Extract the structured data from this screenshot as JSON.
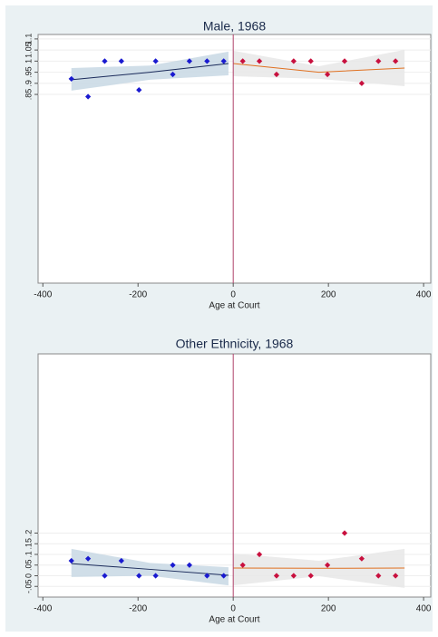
{
  "chart_data": [
    {
      "type": "rdplot",
      "title": "Male, 1968",
      "x_label": "Age at Court",
      "xlim": [
        -410,
        415
      ],
      "ylim": [
        0,
        1.12
      ],
      "xticks": [
        -400,
        -200,
        0,
        200,
        400
      ],
      "yticks": [
        {
          "value": 0.85,
          "label": ".85"
        },
        {
          "value": 0.9,
          "label": ".9"
        },
        {
          "value": 0.95,
          "label": ".95"
        },
        1,
        {
          "value": 1.05,
          "label": "1.05"
        },
        {
          "value": 1.1,
          "label": "1.1"
        }
      ],
      "grid": true,
      "xline": 0,
      "xline_color": "#b0406a",
      "series": [
        {
          "color": "#1a1ad0",
          "x": [
            -340,
            -305,
            -270,
            -235,
            -198,
            -163,
            -127,
            -92,
            -55,
            -20
          ],
          "values": [
            0.92,
            0.84,
            1,
            1,
            0.87,
            1,
            0.94,
            1,
            1,
            1
          ]
        },
        {
          "color": "#c8103e",
          "x": [
            20,
            55,
            91,
            127,
            163,
            198,
            234,
            270,
            305,
            341
          ],
          "values": [
            1,
            1,
            0.94,
            1,
            1,
            0.94,
            1,
            0.9,
            1,
            1
          ]
        }
      ],
      "fits": [
        {
          "color": "#1a2a5a",
          "band_color": "#c8d8e4",
          "x": [
            -340,
            -175,
            -10
          ],
          "values": [
            0.916,
            0.95,
            0.989
          ],
          "lower": [
            0.867,
            0.916,
            0.936
          ],
          "upper": [
            0.969,
            0.98,
            1.043
          ]
        },
        {
          "color": "#e07020",
          "band_color": "#e8e8e8",
          "x": [
            0,
            180,
            360
          ],
          "values": [
            0.989,
            0.95,
            0.969
          ],
          "lower": [
            0.932,
            0.92,
            0.887
          ],
          "upper": [
            1.047,
            0.977,
            1.051
          ]
        }
      ]
    },
    {
      "type": "rdplot",
      "title": "Other Ethnicity, 1968",
      "x_label": "Age at Court",
      "xlim": [
        -410,
        415
      ],
      "ylim": [
        -0.1,
        1.04
      ],
      "xticks": [
        -400,
        -200,
        0,
        200,
        400
      ],
      "yticks": [
        {
          "value": -0.05,
          "label": "-.05"
        },
        0,
        {
          "value": 0.05,
          "label": ".05"
        },
        {
          "value": 0.1,
          "label": ".1"
        },
        {
          "value": 0.15,
          "label": ".15"
        },
        {
          "value": 0.2,
          "label": ".2"
        }
      ],
      "grid": true,
      "xline": 0,
      "xline_color": "#b0406a",
      "series": [
        {
          "color": "#1a1ad0",
          "x": [
            -340,
            -305,
            -270,
            -235,
            -198,
            -163,
            -127,
            -92,
            -55,
            -20
          ],
          "values": [
            0.07,
            0.08,
            0,
            0.07,
            0,
            0,
            0.05,
            0.05,
            0,
            0
          ]
        },
        {
          "color": "#c8103e",
          "x": [
            20,
            55,
            91,
            127,
            163,
            198,
            234,
            270,
            305,
            341
          ],
          "values": [
            0.05,
            0.1,
            0,
            0,
            0,
            0.05,
            0.2,
            0.08,
            0,
            0
          ]
        }
      ],
      "fits": [
        {
          "color": "#1a2a5a",
          "band_color": "#c8d8e4",
          "x": [
            -340,
            -175,
            -10
          ],
          "values": [
            0.057,
            0.03,
            0.002
          ],
          "lower": [
            -0.006,
            0,
            -0.045
          ],
          "upper": [
            0.126,
            0.06,
            0.04
          ]
        },
        {
          "color": "#e07020",
          "band_color": "#e8e8e8",
          "x": [
            0,
            180,
            360
          ],
          "values": [
            0.036,
            0.035,
            0.036
          ],
          "lower": [
            -0.045,
            -0.002,
            -0.057
          ],
          "upper": [
            0.104,
            0.07,
            0.126
          ]
        }
      ]
    }
  ]
}
